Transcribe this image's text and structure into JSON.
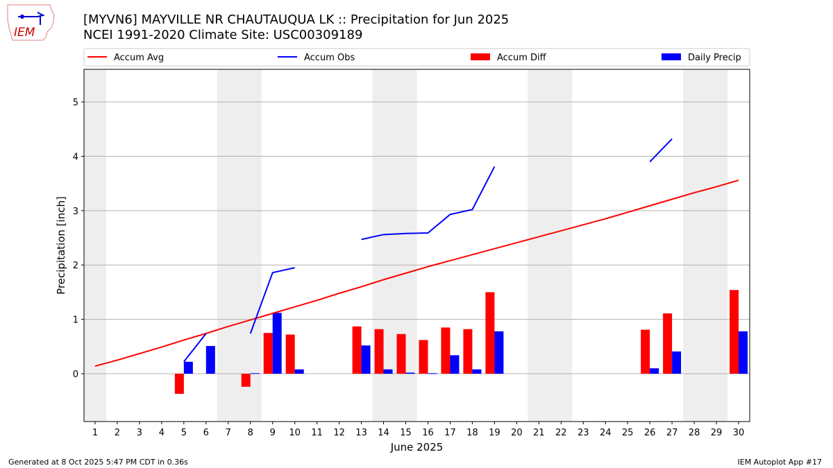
{
  "header": {
    "title_line1": "[MYVN6] MAYVILLE NR CHAUTAUQUA LK :: Precipitation for Jun 2025",
    "title_line2": "NCEI 1991-2020 Climate Site: USC00309189",
    "logo_text": "IEM"
  },
  "footer": {
    "generated": "Generated at 8 Oct 2025 5:47 PM CDT in 0.36s",
    "app": "IEM Autoplot App #17"
  },
  "colors": {
    "avg": "#ff0000",
    "obs": "#0000ff",
    "diff": "#ff0000",
    "daily": "#0000ff",
    "weekend": "#eeeeee",
    "grid": "#b0b0b0"
  },
  "chart_data": {
    "type": "bar",
    "title": "[MYVN6] MAYVILLE NR CHAUTAUQUA LK :: Precipitation for Jun 2025",
    "xlabel": "June 2025",
    "ylabel": "Precipitation [inch]",
    "xlim": [
      0.5,
      30.5
    ],
    "ylim": [
      -0.88,
      5.6
    ],
    "yticks": [
      0,
      1,
      2,
      3,
      4,
      5
    ],
    "grid": true,
    "legend_position": "top",
    "legend": [
      "Accum Avg",
      "Accum Obs",
      "Accum Diff",
      "Daily Precip"
    ],
    "weekend_days": [
      1,
      7,
      8,
      14,
      15,
      21,
      22,
      28,
      29
    ],
    "x": [
      1,
      2,
      3,
      4,
      5,
      6,
      7,
      8,
      9,
      10,
      11,
      12,
      13,
      14,
      15,
      16,
      17,
      18,
      19,
      20,
      21,
      22,
      23,
      24,
      25,
      26,
      27,
      28,
      29,
      30
    ],
    "series": [
      {
        "name": "Accum Avg",
        "kind": "line",
        "values": [
          0.14,
          0.25,
          0.37,
          0.49,
          0.62,
          0.74,
          0.87,
          0.99,
          1.11,
          1.23,
          1.35,
          1.48,
          1.6,
          1.73,
          1.85,
          1.97,
          2.08,
          2.19,
          2.3,
          2.41,
          2.52,
          2.63,
          2.74,
          2.85,
          2.97,
          3.09,
          3.21,
          3.33,
          3.44,
          3.56
        ]
      },
      {
        "name": "Accum Obs",
        "kind": "line",
        "values": [
          null,
          null,
          null,
          null,
          0.22,
          0.74,
          null,
          0.74,
          1.86,
          1.95,
          null,
          null,
          2.47,
          2.56,
          2.58,
          2.59,
          2.93,
          3.02,
          3.81,
          null,
          null,
          null,
          null,
          null,
          null,
          3.9,
          4.32,
          null,
          null,
          null
        ]
      },
      {
        "name": "Accum Diff",
        "kind": "bar",
        "values": [
          null,
          null,
          null,
          null,
          -0.37,
          0,
          null,
          -0.24,
          0.75,
          0.72,
          null,
          null,
          0.87,
          0.82,
          0.73,
          0.62,
          0.85,
          0.82,
          1.5,
          null,
          null,
          null,
          null,
          null,
          null,
          0.81,
          1.11,
          null,
          null,
          1.54
        ]
      },
      {
        "name": "Daily Precip",
        "kind": "bar",
        "values": [
          null,
          null,
          null,
          null,
          0.22,
          0.51,
          null,
          0.01,
          1.12,
          0.08,
          null,
          null,
          0.52,
          0.08,
          0.02,
          0.01,
          0.34,
          0.08,
          0.78,
          null,
          null,
          null,
          null,
          null,
          null,
          0.1,
          0.41,
          null,
          null,
          0.78
        ]
      }
    ]
  }
}
